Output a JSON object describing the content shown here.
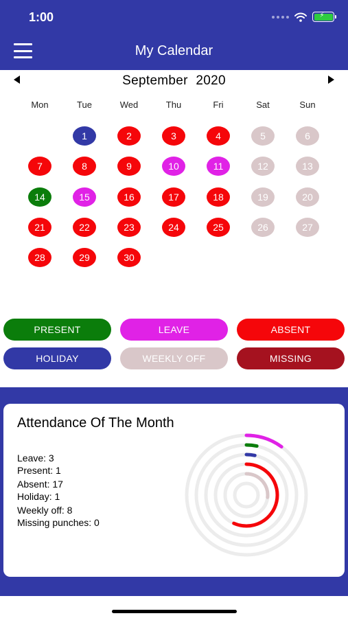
{
  "status": {
    "time": "1:00",
    "accent": "#3239a6",
    "battery_color": "#2ecc40",
    "icons": [
      "signal-icon",
      "wifi-icon",
      "battery-icon"
    ]
  },
  "app_bar": {
    "title": "My Calendar",
    "menu_icon": "hamburger-menu-icon"
  },
  "calendar": {
    "month_label": "September  2020",
    "prev_icon": "chevron-left-icon",
    "next_icon": "chevron-right-icon",
    "weekdays": [
      "Mon",
      "Tue",
      "Wed",
      "Thu",
      "Fri",
      "Sat",
      "Sun"
    ],
    "first_day_column": 1,
    "days": [
      {
        "d": "1",
        "s": "holiday"
      },
      {
        "d": "2",
        "s": "absent"
      },
      {
        "d": "3",
        "s": "absent"
      },
      {
        "d": "4",
        "s": "absent"
      },
      {
        "d": "5",
        "s": "weekly_off"
      },
      {
        "d": "6",
        "s": "weekly_off"
      },
      {
        "d": "7",
        "s": "absent"
      },
      {
        "d": "8",
        "s": "absent"
      },
      {
        "d": "9",
        "s": "absent"
      },
      {
        "d": "10",
        "s": "leave"
      },
      {
        "d": "11",
        "s": "leave"
      },
      {
        "d": "12",
        "s": "weekly_off"
      },
      {
        "d": "13",
        "s": "weekly_off"
      },
      {
        "d": "14",
        "s": "present"
      },
      {
        "d": "15",
        "s": "leave"
      },
      {
        "d": "16",
        "s": "absent"
      },
      {
        "d": "17",
        "s": "absent"
      },
      {
        "d": "18",
        "s": "absent"
      },
      {
        "d": "19",
        "s": "weekly_off"
      },
      {
        "d": "20",
        "s": "weekly_off"
      },
      {
        "d": "21",
        "s": "absent"
      },
      {
        "d": "22",
        "s": "absent"
      },
      {
        "d": "23",
        "s": "absent"
      },
      {
        "d": "24",
        "s": "absent"
      },
      {
        "d": "25",
        "s": "absent"
      },
      {
        "d": "26",
        "s": "weekly_off"
      },
      {
        "d": "27",
        "s": "weekly_off"
      },
      {
        "d": "28",
        "s": "absent"
      },
      {
        "d": "29",
        "s": "absent"
      },
      {
        "d": "30",
        "s": "absent"
      }
    ]
  },
  "status_colors": {
    "present": "#0b7d0b",
    "leave": "#e022e6",
    "absent": "#f5060a",
    "holiday": "#3239a6",
    "weekly_off": "#d9c7c9",
    "missing": "#a5121f"
  },
  "legend": {
    "present": "PRESENT",
    "leave": "LEAVE",
    "absent": "ABSENT",
    "holiday": "HOLIDAY",
    "weekly_off": "WEEKLY OFF",
    "missing": "MISSING"
  },
  "summary": {
    "title": "Attendance Of The Month",
    "leave": "Leave: 3",
    "present": "Present: 1",
    "absent": "Absent: 17",
    "holiday": "Holiday: 1",
    "weekly_off": "Weekly off: 8",
    "missing": "Missing punches: 0",
    "ring_total_days": 30,
    "rings": [
      {
        "status": "leave",
        "value": 3
      },
      {
        "status": "present",
        "value": 1
      },
      {
        "status": "holiday",
        "value": 1
      },
      {
        "status": "absent",
        "value": 17
      },
      {
        "status": "weekly_off",
        "value": 8
      },
      {
        "status": "missing",
        "value": 0
      }
    ]
  }
}
